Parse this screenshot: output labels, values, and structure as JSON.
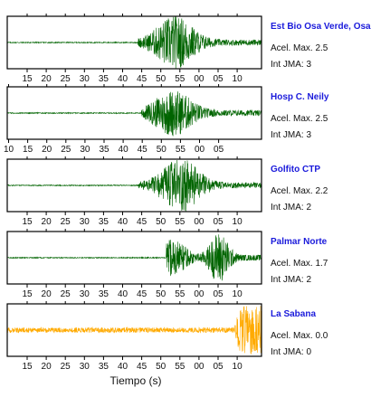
{
  "chart_data": {
    "type": "line",
    "xlabel": "Tiempo (s)",
    "panels": [
      {
        "station": "Est Bio Osa Verde, Osa",
        "accel_label": "Acel. Max.",
        "accel_value": "2.5",
        "int_label": "Int JMA:",
        "int_value": "3",
        "color": "#006400",
        "onset": 37,
        "peak_center": 47.5,
        "amp": 1.0,
        "tick_labels": [
          "15",
          "20",
          "25",
          "30",
          "35",
          "40",
          "45",
          "50",
          "55",
          "00",
          "05",
          "10"
        ]
      },
      {
        "station": "Hosp C. Neily",
        "accel_label": "Acel. Max.",
        "accel_value": "2.5",
        "int_label": "Int JMA:",
        "int_value": "3",
        "color": "#006400",
        "onset": 38,
        "peak_center": 47,
        "amp": 0.85,
        "tick_labels": [
          "10",
          "15",
          "20",
          "25",
          "30",
          "35",
          "40",
          "45",
          "50",
          "55",
          "00",
          "05"
        ]
      },
      {
        "station": "Golfito CTP",
        "accel_label": "Acel. Max.",
        "accel_value": "2.2",
        "int_label": "Int JMA:",
        "int_value": "2",
        "color": "#006400",
        "onset": 37,
        "peak_center": 49,
        "amp": 1.0,
        "tick_labels": [
          "15",
          "20",
          "25",
          "30",
          "35",
          "40",
          "45",
          "50",
          "55",
          "00",
          "05",
          "10"
        ]
      },
      {
        "station": "Palmar Norte",
        "accel_label": "Acel. Max.",
        "accel_value": "1.7",
        "int_label": "Int JMA:",
        "int_value": "2",
        "color": "#006400",
        "onset": 45,
        "peak_center": 60,
        "amp": 0.95,
        "tick_labels": [
          "15",
          "20",
          "25",
          "30",
          "35",
          "40",
          "45",
          "50",
          "55",
          "00",
          "05",
          "10"
        ]
      },
      {
        "station": "La Sabana",
        "accel_label": "Acel. Max.",
        "accel_value": "0.0",
        "int_label": "Int JMA:",
        "int_value": "0",
        "color": "#ffaa00",
        "onset": 64,
        "peak_center": 67,
        "amp": 1.0,
        "tick_labels": [
          "15",
          "20",
          "25",
          "30",
          "35",
          "40",
          "45",
          "50",
          "55",
          "00",
          "05",
          "10"
        ]
      }
    ]
  }
}
